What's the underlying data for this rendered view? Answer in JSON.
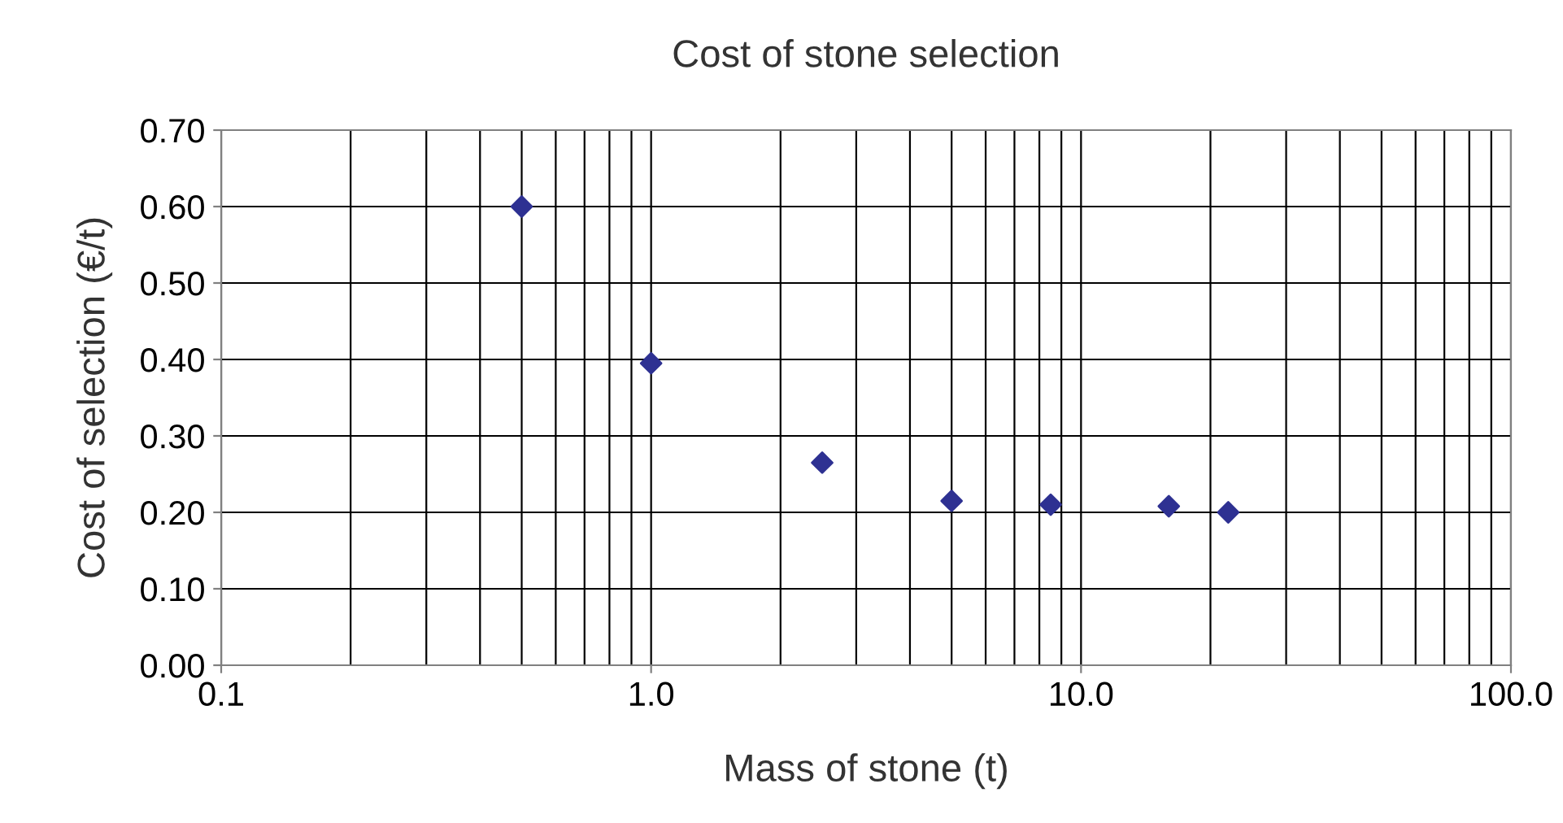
{
  "chart_data": {
    "type": "scatter",
    "title": "Cost of stone selection",
    "xlabel": "Mass of stone (t)",
    "ylabel": "Cost of selection (€/t)",
    "x": [
      0.5,
      1.0,
      2.5,
      5.0,
      8.5,
      16,
      22
    ],
    "series": [
      {
        "color": "#2e3192",
        "values": [
          0.6,
          0.395,
          0.265,
          0.215,
          0.21,
          0.208,
          0.2
        ]
      }
    ],
    "marker": "diamond",
    "log": "x",
    "grid": true,
    "legend": false,
    "xlim": [
      0.1,
      100
    ],
    "xticks": [
      {
        "value": 0.1,
        "label": "0.1"
      },
      {
        "value": 1,
        "label": "1.0"
      },
      {
        "value": 10,
        "label": "10.0"
      },
      {
        "value": 100,
        "label": "100.0"
      }
    ],
    "ylim": [
      0,
      0.7
    ],
    "yticks": [
      {
        "value": 0,
        "label": "0.00"
      },
      {
        "value": 0.1,
        "label": "0.10"
      },
      {
        "value": 0.2,
        "label": "0.20"
      },
      {
        "value": 0.3,
        "label": "0.30"
      },
      {
        "value": 0.4,
        "label": "0.40"
      },
      {
        "value": 0.5,
        "label": "0.50"
      },
      {
        "value": 0.6,
        "label": "0.60"
      },
      {
        "value": 0.7,
        "label": "0.70"
      }
    ]
  }
}
